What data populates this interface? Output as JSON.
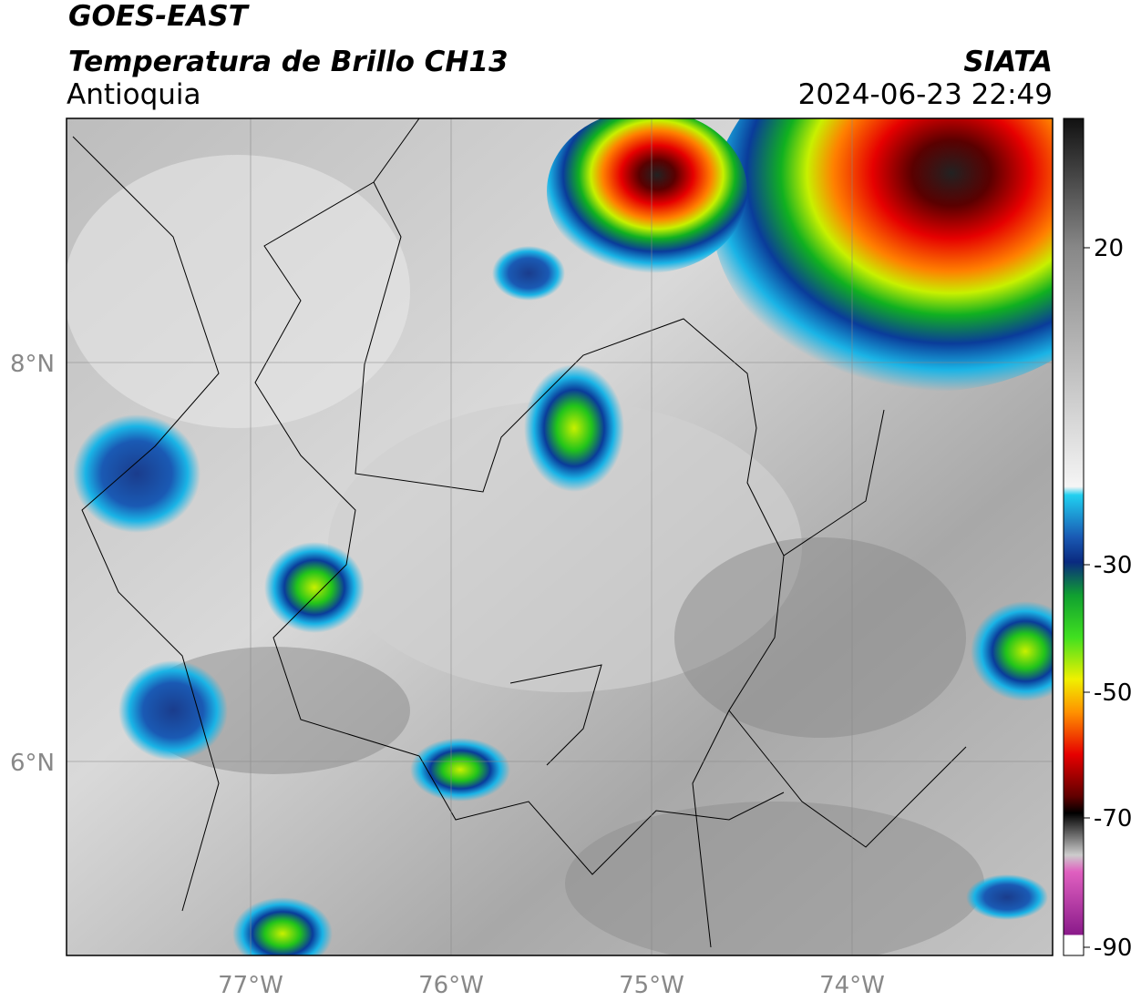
{
  "header": {
    "title": "GOES-EAST",
    "subtitle": "Temperatura de Brillo CH13",
    "region": "Antioquia",
    "source": "SIATA",
    "datetime": "2024-06-23 22:49"
  },
  "map": {
    "lon_ticks": [
      "77°W",
      "76°W",
      "75°W",
      "74°W"
    ],
    "lat_ticks": [
      "8°N",
      "6°N"
    ]
  },
  "colorbar": {
    "ticks": [
      "20",
      "-30",
      "-50",
      "-70",
      "-90"
    ]
  }
}
